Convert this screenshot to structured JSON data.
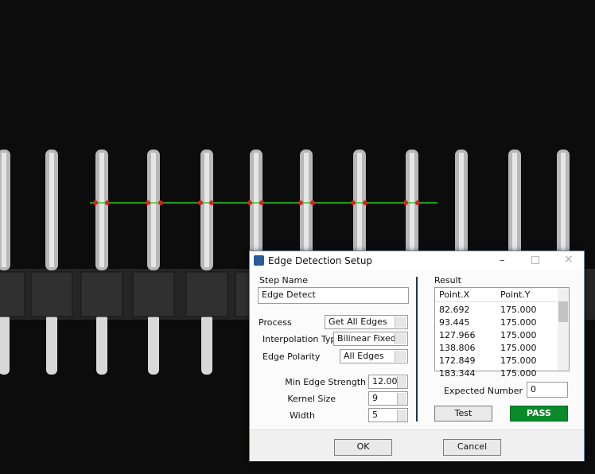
{
  "dialog": {
    "title": "Edge Detection Setup",
    "step_name_label": "Step Name",
    "step_name": "Edge Detect",
    "process_label": "Process",
    "process": "Get All Edges",
    "interpolation_label": "Interpolation Type",
    "interpolation": "Bilinear Fixed",
    "polarity_label": "Edge Polarity",
    "polarity": "All Edges",
    "min_strength_label": "Min Edge Strength",
    "min_strength": "12.00",
    "kernel_label": "Kernel Size",
    "kernel": "9",
    "width_label": "Width",
    "width": "5",
    "result_label": "Result",
    "result_table": {
      "columns": [
        "Point.X",
        "Point.Y"
      ],
      "rows": [
        [
          "82.692",
          "175.000"
        ],
        [
          "93.445",
          "175.000"
        ],
        [
          "127.966",
          "175.000"
        ],
        [
          "138.806",
          "175.000"
        ],
        [
          "172.849",
          "175.000"
        ],
        [
          "183.344",
          "175.000"
        ]
      ]
    },
    "expected_label": "Expected Number",
    "expected": "0",
    "test_button": "Test",
    "status": "PASS",
    "ok_button": "OK",
    "cancel_button": "Cancel"
  }
}
